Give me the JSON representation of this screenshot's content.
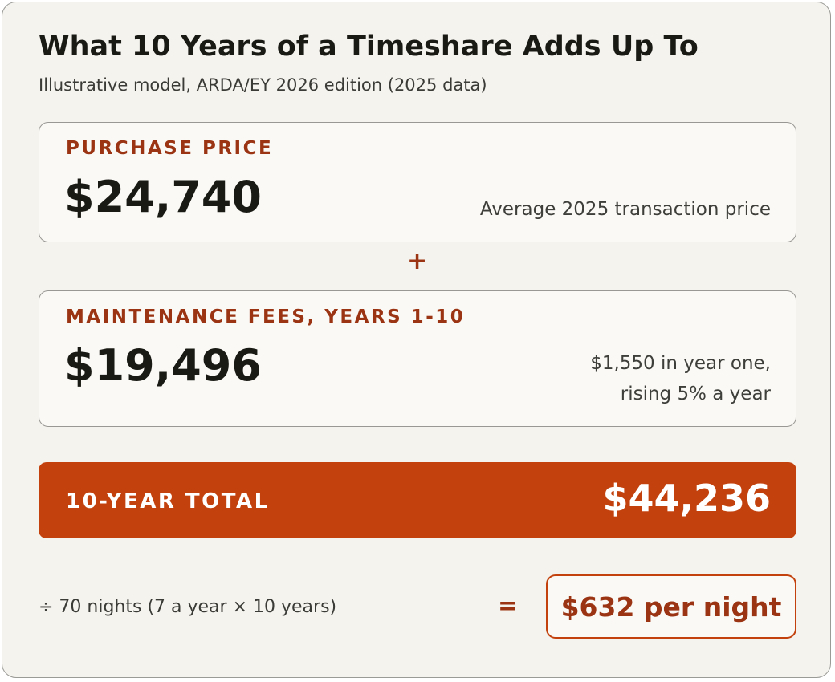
{
  "header": {
    "title": "What 10 Years of a Timeshare Adds Up To",
    "subtitle": "Illustrative model, ARDA/EY 2026 edition (2025 data)"
  },
  "purchase": {
    "label": "PURCHASE PRICE",
    "amount": "$24,740",
    "note": "Average 2025 transaction price"
  },
  "operator": "+",
  "maintenance": {
    "label": "MAINTENANCE FEES, YEARS 1-10",
    "amount": "$19,496",
    "note": [
      "$1,550 in year one,",
      "rising 5% a year"
    ]
  },
  "total": {
    "label": "10-YEAR TOTAL",
    "amount": "$44,236"
  },
  "per_night": {
    "divisor": "÷ 70 nights (7 a year × 10 years)",
    "equals": "=",
    "result": "$632 per night"
  }
}
